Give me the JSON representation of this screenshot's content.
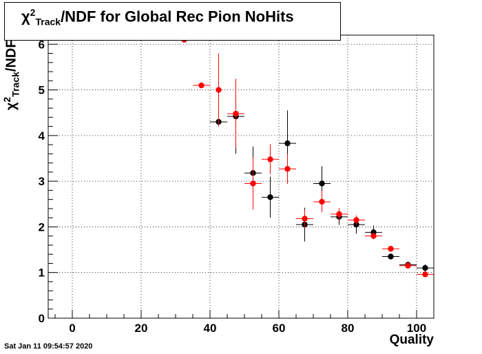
{
  "chart_data": {
    "type": "scatter",
    "title_parts": {
      "chi": "χ",
      "sup": "2",
      "sub": "Track",
      "rest": "/NDF for Global Rec Pion NoHits"
    },
    "ylabel_parts": {
      "chi": "χ",
      "sup": "2",
      "sub": "Track",
      "rest": "/NDF"
    },
    "xlabel": "Quality",
    "xlim": [
      -7,
      105
    ],
    "ylim": [
      0,
      6.2
    ],
    "x_ticks": [
      0,
      20,
      40,
      60,
      80,
      100
    ],
    "y_ticks": [
      0,
      1,
      2,
      3,
      4,
      5,
      6
    ],
    "grid": true,
    "series": [
      {
        "color": "#000000",
        "points": [
          {
            "x": 42.5,
            "y": 4.3,
            "xerr": 2.5,
            "yerr": 0.0
          },
          {
            "x": 47.5,
            "y": 4.42,
            "xerr": 2.5,
            "yerr": 0.82
          },
          {
            "x": 52.5,
            "y": 3.18,
            "xerr": 2.5,
            "yerr": 0.58
          },
          {
            "x": 57.5,
            "y": 2.65,
            "xerr": 2.5,
            "yerr": 0.45
          },
          {
            "x": 62.5,
            "y": 3.83,
            "xerr": 2.5,
            "yerr": 0.72
          },
          {
            "x": 67.5,
            "y": 2.05,
            "xerr": 2.5,
            "yerr": 0.37
          },
          {
            "x": 72.5,
            "y": 2.95,
            "xerr": 2.5,
            "yerr": 0.38
          },
          {
            "x": 77.5,
            "y": 2.22,
            "xerr": 2.5,
            "yerr": 0.18
          },
          {
            "x": 82.5,
            "y": 2.05,
            "xerr": 2.5,
            "yerr": 0.2
          },
          {
            "x": 87.5,
            "y": 1.88,
            "xerr": 2.5,
            "yerr": 0.15
          },
          {
            "x": 92.5,
            "y": 1.35,
            "xerr": 2.5,
            "yerr": 0.05
          },
          {
            "x": 97.5,
            "y": 1.17,
            "xerr": 2.5,
            "yerr": 0.05
          },
          {
            "x": 102.5,
            "y": 1.1,
            "xerr": 2.5,
            "yerr": 0.08
          }
        ]
      },
      {
        "color": "#ff0000",
        "points": [
          {
            "x": 32.5,
            "y": 6.1,
            "xerr": 2.5,
            "yerr": 0.0
          },
          {
            "x": 37.5,
            "y": 5.1,
            "xerr": 2.5,
            "yerr": 0.0
          },
          {
            "x": 42.5,
            "y": 5.0,
            "xerr": 0.0,
            "yerr": 0.8
          },
          {
            "x": 47.5,
            "y": 4.48,
            "xerr": 2.5,
            "yerr": 0.75
          },
          {
            "x": 52.5,
            "y": 2.95,
            "xerr": 2.5,
            "yerr": 0.57
          },
          {
            "x": 57.5,
            "y": 3.48,
            "xerr": 2.5,
            "yerr": 0.33
          },
          {
            "x": 62.5,
            "y": 3.27,
            "xerr": 2.5,
            "yerr": 0.33
          },
          {
            "x": 67.5,
            "y": 2.18,
            "xerr": 2.5,
            "yerr": 0.2
          },
          {
            "x": 72.5,
            "y": 2.55,
            "xerr": 2.5,
            "yerr": 0.23
          },
          {
            "x": 77.5,
            "y": 2.28,
            "xerr": 2.5,
            "yerr": 0.13
          },
          {
            "x": 82.5,
            "y": 2.15,
            "xerr": 2.5,
            "yerr": 0.1
          },
          {
            "x": 87.5,
            "y": 1.8,
            "xerr": 2.5,
            "yerr": 0.06
          },
          {
            "x": 92.5,
            "y": 1.52,
            "xerr": 2.5,
            "yerr": 0.06
          },
          {
            "x": 97.5,
            "y": 1.15,
            "xerr": 2.5,
            "yerr": 0.05
          },
          {
            "x": 102.5,
            "y": 0.96,
            "xerr": 2.5,
            "yerr": 0.05
          }
        ]
      }
    ]
  },
  "footer": {
    "timestamp": "Sat Jan 11 09:54:57 2020"
  }
}
